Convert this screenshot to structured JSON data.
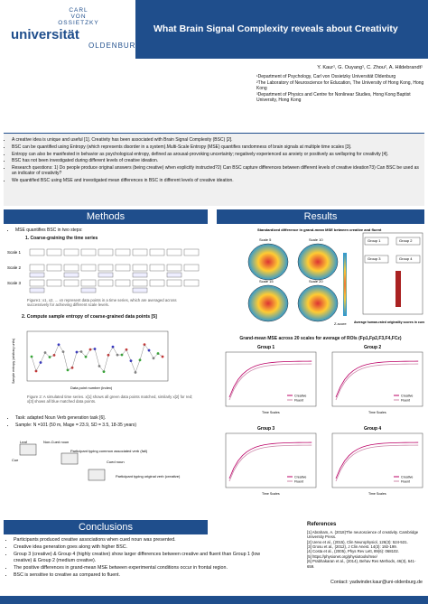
{
  "header": {
    "logo": [
      "CARL",
      "VON",
      "OSSIETZKY",
      "universität",
      "OLDENBURG"
    ],
    "title": "What Brain Signal Complexity reveals about Creativity"
  },
  "authors": {
    "names": "Y. Kaur¹, G. Ouyang¹, C. Zhou², A. Hildebrandt¹",
    "affiliations": [
      "¹Department of Psychology, Carl von Ossietzky Universität Oldenburg",
      "²The Laboratory of Neuroscience for Education, The University of Hong Kong, Hong Kong",
      "³Department of Physics and Centre for Nonlinear Studies, Hong Kong Baptist University, Hong Kong"
    ]
  },
  "intro": {
    "bullets": [
      "A creative idea is unique and useful [1]. Creativity has been associated with Brain Signal Complexity (BSC) [2].",
      "BSC can be quantified using Entropy (which represents disorder in a system).Multi-Scale Entropy (MSE) quantifies randomness of brain signals at multiple time scales [3].",
      "Entropy can also be manifested in behavior as psychological entropy, defined as arousal-provoking uncertainty; negatively experienced as anxiety or positively as wellspring for creativity [4].",
      "BSC has not been investigated during different levels of creative ideation.",
      "Research questions: 1) Do people produce original answers (being creative) when explicitly instructed?2) Can BSC capture differences between different levels of creative ideation?3) Can BSC be used as an indicator of creativity?",
      "We quantified BSC using MSE and investigated mean differences in BSC in different levels of creative ideation."
    ]
  },
  "methods": {
    "heading": "Methods",
    "intro": "MSE quantifies BSC in two steps:",
    "step1": "1.  Coarse-graining the time series",
    "scales": [
      "Scale 1",
      "Scale 2",
      "Scale 3"
    ],
    "caption1": "Figure1: x1, x2, ... xn represent data points in a time series, which are averaged across successively for achieving different scale levels.",
    "step2": "2. Compute sample entropy of coarse-grained data points [5]",
    "ylabel": "Sample entropy (arbitrary units)",
    "xlabel": "Data point number (index)",
    "caption2": "Figure 2: A simulated time series. x[1] shows all green data points matched, similarly x[2] for red; x[3] shows all blue matched data points.",
    "task": "Task: adapted Noun Verb generation task [6].",
    "sample": "Sample: N =101 (50 m, Mage = 23.9, SD = 3.5, 18-35 years)",
    "diagram": [
      "Leaf",
      "Non-Cued noun",
      "Participant typing common associated verb (fall)",
      "Cue",
      "Cued noun",
      "Participant typing original verb (creative)"
    ]
  },
  "results": {
    "heading": "Results",
    "brain_title": "Standardized difference in grand-mean MSE between creative and fluent",
    "scales": [
      "Scale 5",
      "Scale 10",
      "Scale 15",
      "Scale 20"
    ],
    "zscore": "Z-score",
    "groups": [
      "Group 1",
      "Group 2",
      "Group 3",
      "Group 4"
    ],
    "score_label": "Average human-rated originality scores in cued condition",
    "mse_title": "Grand-mean MSE across 20 scales for average of ROIs (Fp1,Fp2,F3,F4,FCz)",
    "time_scales": "Time Scales",
    "legend": [
      "Creative",
      "Fluent"
    ]
  },
  "conclusions": {
    "heading": "Conclusions",
    "bullets": [
      "Participants produced creative associations when cued noun was presented.",
      "Creative idea generation goes along with higher BSC.",
      "Group 3 (creative) & Group 4 (highly creative) show larger differences between creative and fluent than Group 1 (low creative) & Group 2 (medium creative).",
      "The positive differences in grand-mean MSE between experimental conditions occur in frontal region.",
      "BSC is sensitive to creative as compared to fluent."
    ]
  },
  "references": {
    "heading": "References",
    "items": [
      "[1] Abraham, A. (2018)The neuroscience of creativity. Cambridge University Press.",
      "[2] Ueno et al., (2015), Clin Neurophysiol, 126(3): 524-531.",
      "[3] Grosu et al., (2012), J Clin Anest. 14(3): 192-199.",
      "[4] Costa et al., (2005), Phys Rev Lett, 89(6): 068102.",
      "[5] https://physionet.org/physiotools/mse/",
      "[6] Prabhakaran et al., (2014), Behav Res Methods, 46(3), 641-659."
    ],
    "contact": "Contact: yadwinder.kaur@uni-oldenburg.de"
  }
}
